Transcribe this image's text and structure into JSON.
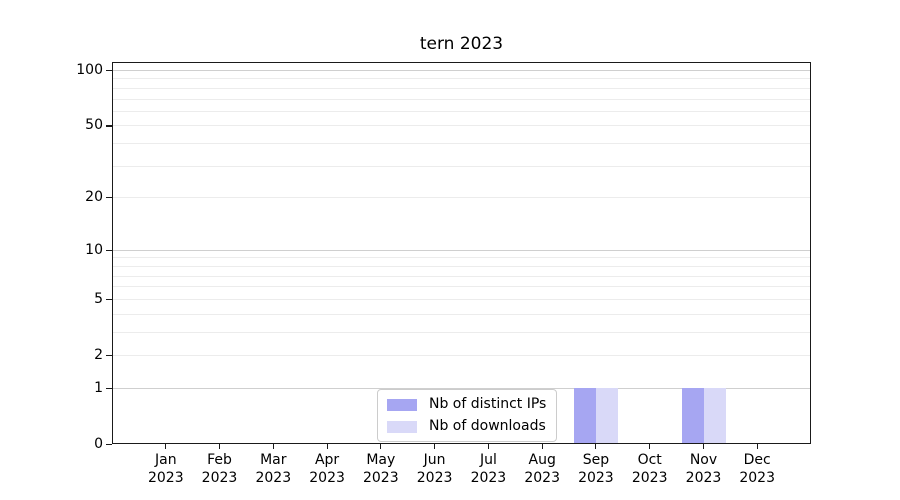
{
  "chart_data": {
    "type": "bar",
    "title": "tern 2023",
    "categories": [
      "Jan 2023",
      "Feb 2023",
      "Mar 2023",
      "Apr 2023",
      "May 2023",
      "Jun 2023",
      "Jul 2023",
      "Aug 2023",
      "Sep 2023",
      "Oct 2023",
      "Nov 2023",
      "Dec 2023"
    ],
    "series": [
      {
        "name": "Nb of distinct IPs",
        "key": "distinct-ips",
        "color": "#a6a6f2",
        "values": [
          0,
          0,
          0,
          0,
          0,
          0,
          0,
          0,
          1,
          0,
          1,
          0
        ]
      },
      {
        "name": "Nb of downloads",
        "key": "downloads",
        "color": "#d9d9f8",
        "values": [
          0,
          0,
          0,
          0,
          0,
          0,
          0,
          0,
          1,
          0,
          1,
          0
        ]
      }
    ],
    "y_axis": {
      "scale": "log1p",
      "tick_labels": [
        0,
        1,
        2,
        5,
        10,
        20,
        50,
        100
      ],
      "major_gridlines": [
        1,
        10,
        100
      ],
      "minor_gridlines": [
        2,
        3,
        4,
        5,
        6,
        7,
        8,
        9,
        20,
        30,
        40,
        50,
        60,
        70,
        80,
        90
      ],
      "ylim": [
        0,
        110
      ]
    },
    "xlabel": "",
    "ylabel": "",
    "grid": true,
    "legend": {
      "position": "lower center",
      "entries": [
        "Nb of distinct IPs",
        "Nb of downloads"
      ]
    }
  }
}
